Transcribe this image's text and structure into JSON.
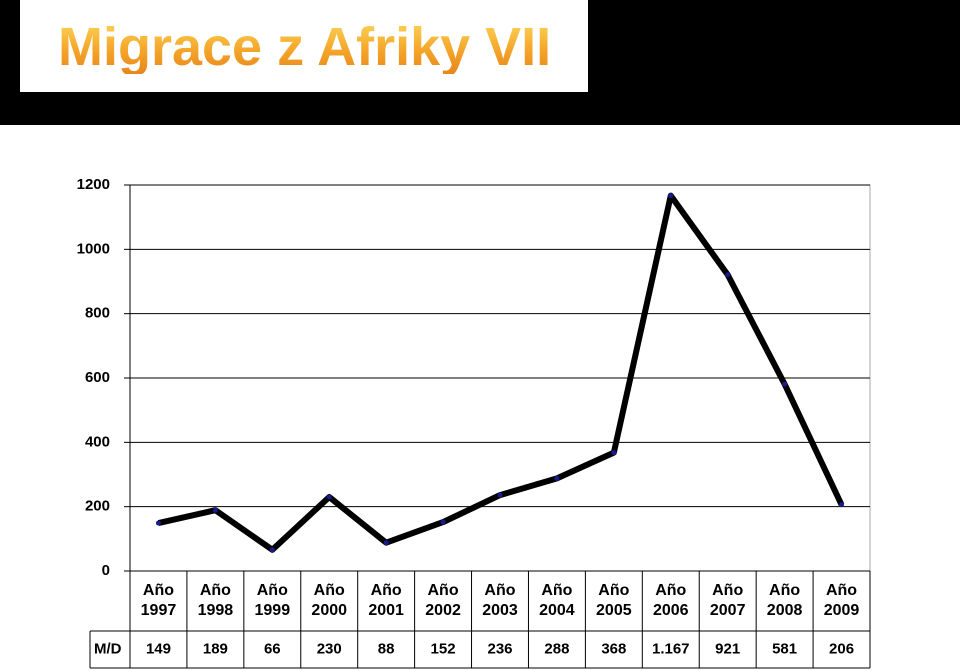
{
  "chart_data": {
    "type": "line",
    "title": "Migrace z Afriky VII",
    "categories": [
      "Año 1997",
      "Año 1998",
      "Año 1999",
      "Año 2000",
      "Año 2001",
      "Año 2002",
      "Año 2003",
      "Año 2004",
      "Año 2005",
      "Año 2006",
      "Año 2007",
      "Año 2008",
      "Año 2009"
    ],
    "series": [
      {
        "name": "M/D",
        "color": "#000000",
        "values": [
          149,
          189,
          66,
          230,
          88,
          152,
          236,
          288,
          368,
          1167,
          921,
          581,
          206
        ],
        "value_labels": [
          "149",
          "189",
          "66",
          "230",
          "88",
          "152",
          "236",
          "288",
          "368",
          "1.167",
          "921",
          "581",
          "206"
        ]
      }
    ],
    "ylim": [
      0,
      1200
    ],
    "yticks": [
      0,
      200,
      400,
      600,
      800,
      1000,
      1200
    ],
    "grid": true
  }
}
